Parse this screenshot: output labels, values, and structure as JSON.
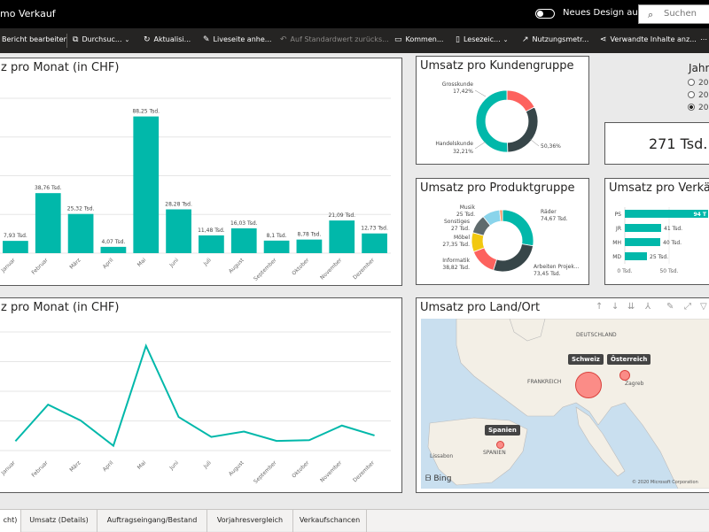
{
  "header": {
    "title": "mo Verkauf",
    "toggle_label": "Neues Design aus",
    "search_placeholder": "Suchen"
  },
  "toolbar": {
    "items": [
      {
        "label": "Bericht bearbeiten",
        "icon": "edit-icon"
      },
      {
        "label": "Durchsuc...",
        "icon": "explore-icon"
      },
      {
        "label": "Aktualisi...",
        "icon": "refresh-icon"
      },
      {
        "label": "Liveseite anhe...",
        "icon": "pin-icon"
      },
      {
        "label": "Auf Standardwert zurücks...",
        "icon": "reset-icon"
      },
      {
        "label": "Kommen...",
        "icon": "comment-icon"
      },
      {
        "label": "Lesezeic...",
        "icon": "bookmark-icon"
      },
      {
        "label": "Nutzungsmetr...",
        "icon": "metrics-icon"
      },
      {
        "label": "Verwandte Inhalte anz...",
        "icon": "share-icon"
      }
    ]
  },
  "bar_chart": {
    "title": "z pro Monat (in CHF)",
    "chart_data": {
      "type": "bar",
      "categories": [
        "Januar",
        "Februar",
        "März",
        "April",
        "Mai",
        "Juni",
        "Juli",
        "August",
        "September",
        "Oktober",
        "November",
        "Dezember"
      ],
      "values": [
        7.93,
        38.76,
        25.32,
        4.07,
        88.25,
        28.28,
        11.48,
        16.03,
        8.1,
        8.78,
        21.09,
        12.73
      ],
      "data_labels": [
        "7,93 Tsd.",
        "38,76 Tsd.",
        "25,32 Tsd.",
        "4,07 Tsd.",
        "88,25 Tsd.",
        "28,28 Tsd.",
        "11,48 Tsd.",
        "16,03 Tsd.",
        "8,1 Tsd.",
        "8,78 Tsd.",
        "21,09 Tsd.",
        "12,73 Tsd."
      ],
      "ylim": [
        0,
        100
      ],
      "color": "#01b8aa"
    }
  },
  "line_chart": {
    "title": "z pro Monat (in CHF)",
    "chart_data": {
      "type": "line",
      "categories": [
        "Januar",
        "Februar",
        "März",
        "April",
        "Mai",
        "Juni",
        "Juli",
        "August",
        "September",
        "Oktober",
        "November",
        "Dezember"
      ],
      "values": [
        7.93,
        38.76,
        25.32,
        4.07,
        88.25,
        28.28,
        11.48,
        16.03,
        8.1,
        8.78,
        21.09,
        12.73
      ],
      "ylim": [
        0,
        100
      ],
      "color": "#01b8aa"
    }
  },
  "donut_kunde": {
    "title": "Umsatz pro Kundengruppe",
    "chart_data": {
      "type": "pie",
      "slices": [
        {
          "label": "Grosskunde",
          "pct_label": "17,42%",
          "value": 17.42,
          "color": "#fd625e"
        },
        {
          "label": "Handelskunde",
          "pct_label": "32,21%",
          "value": 32.21,
          "color": "#374649"
        },
        {
          "label": "",
          "pct_label": "50,36%",
          "value": 50.36,
          "color": "#01b8aa"
        }
      ]
    }
  },
  "donut_produkt": {
    "title": "Umsatz pro Produktgruppe",
    "chart_data": {
      "type": "pie",
      "slices": [
        {
          "label": "Räder",
          "value_label": "74,67 Tsd.",
          "value": 74.67,
          "color": "#01b8aa"
        },
        {
          "label": "Arbeiten Projek...",
          "value_label": "73,45 Tsd.",
          "value": 73.45,
          "color": "#374649"
        },
        {
          "label": "Informatik",
          "value_label": "38,82 Tsd.",
          "value": 38.82,
          "color": "#fd625e"
        },
        {
          "label": "Möbel",
          "value_label": "27,35 Tsd.",
          "value": 27.35,
          "color": "#f2c80f"
        },
        {
          "label": "Sonstiges",
          "value_label": "27 Tsd.",
          "value": 27,
          "color": "#5f6b6d"
        },
        {
          "label": "Musik",
          "value_label": "25 Tsd.",
          "value": 25,
          "color": "#8ad4eb"
        },
        {
          "label": "",
          "value_label": "",
          "value": 4,
          "color": "#fe9666"
        }
      ]
    }
  },
  "year_slicer": {
    "title": "Jahr",
    "options": [
      {
        "label": "20",
        "selected": false
      },
      {
        "label": "20",
        "selected": false
      },
      {
        "label": "20",
        "selected": true
      }
    ]
  },
  "kpi_card": {
    "value": "271 Tsd."
  },
  "hbar_chart": {
    "title": "Umsatz pro Verkäufe",
    "chart_data": {
      "type": "bar",
      "orientation": "horizontal",
      "categories": [
        "PS",
        "JR",
        "MH",
        "MD"
      ],
      "values": [
        94,
        41,
        40,
        25
      ],
      "data_labels": [
        "94 T",
        "41 Tsd.",
        "40 Tsd.",
        "25 Tsd."
      ],
      "x_ticks": [
        "0 Tsd.",
        "50 Tsd."
      ],
      "xlim": [
        0,
        100
      ],
      "color": "#01b8aa"
    }
  },
  "map_card": {
    "title": "Umsatz pro Land/Ort",
    "pins": [
      "Schweiz",
      "Österreich",
      "Spanien"
    ],
    "labels": [
      "DEUTSCHLAND",
      "FRANKREICH",
      "SPANIEN",
      "Lissabon",
      "Zagreb"
    ],
    "bing": "Bing",
    "copyright": "© 2020 Microsoft Corporation"
  },
  "tabs": [
    {
      "label": "cht)",
      "active": true
    },
    {
      "label": "Umsatz (Details)",
      "active": false
    },
    {
      "label": "Auftragseingang/Bestand",
      "active": false
    },
    {
      "label": "Vorjahresvergleich",
      "active": false
    },
    {
      "label": "Verkaufschancen",
      "active": false
    }
  ]
}
